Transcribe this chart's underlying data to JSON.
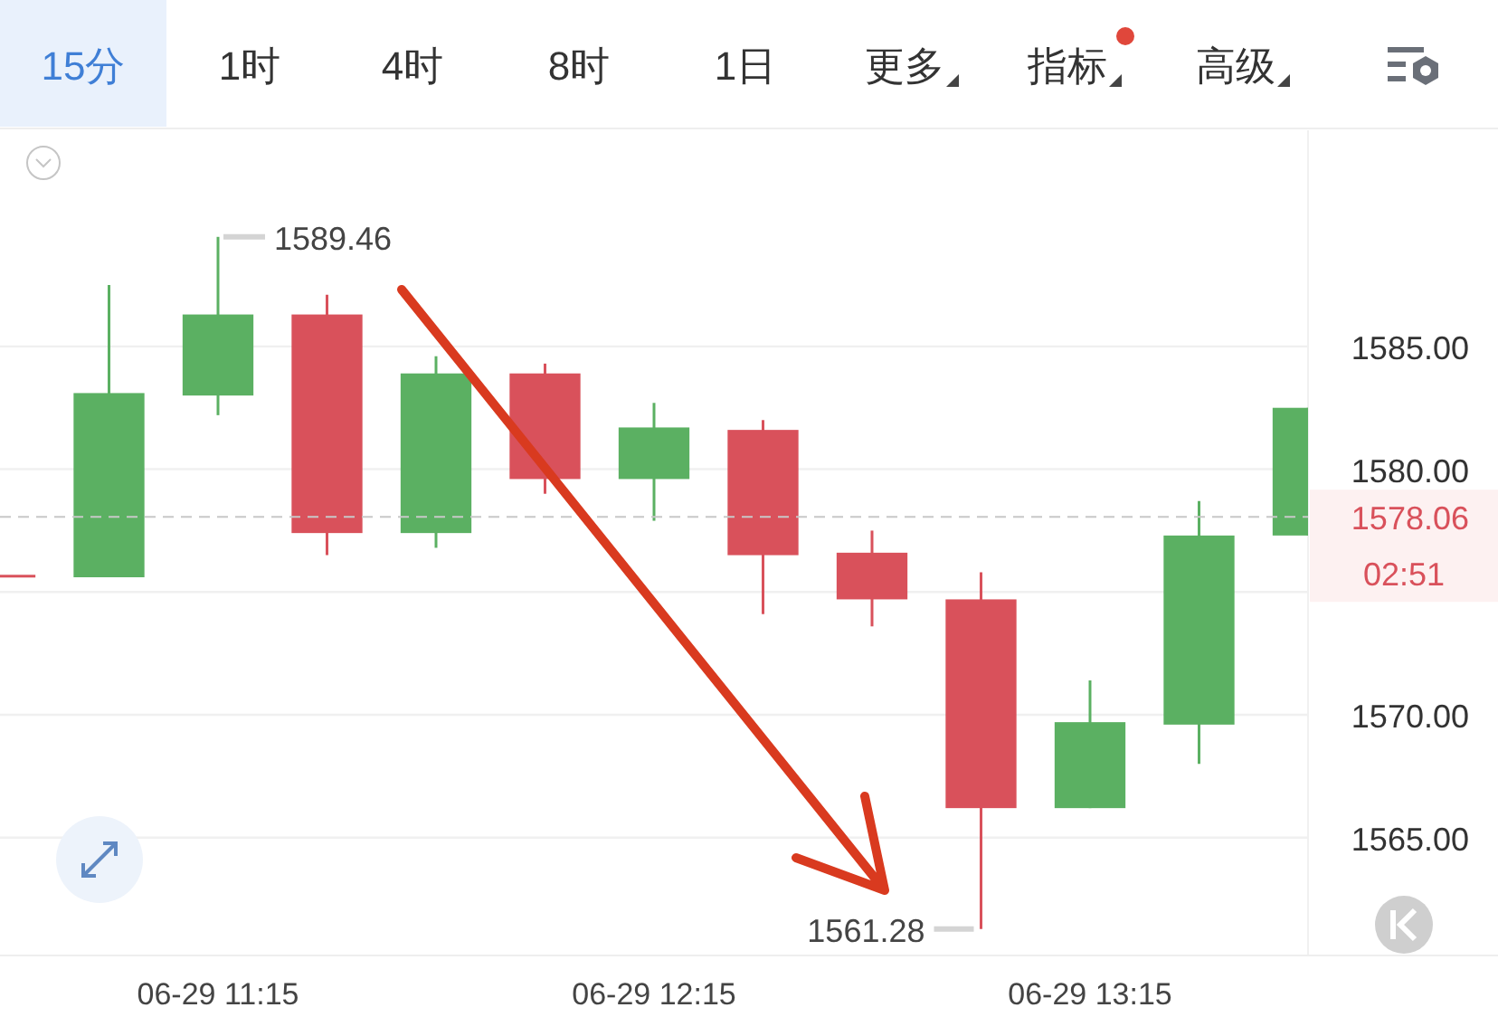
{
  "chart_data": {
    "type": "candlestick",
    "categories": [
      null,
      null,
      "06-29 11:15",
      null,
      null,
      null,
      "06-29 12:15",
      null,
      null,
      null,
      "06-29 13:15",
      null,
      null
    ],
    "ohlc": [
      [
        1575.7,
        1575.7,
        1575.7,
        1575.7
      ],
      [
        1575.6,
        1587.5,
        1575.6,
        1583.1
      ],
      [
        1583.0,
        1589.46,
        1582.2,
        1586.3
      ],
      [
        1586.3,
        1587.1,
        1576.5,
        1577.4
      ],
      [
        1577.4,
        1584.6,
        1576.8,
        1583.9
      ],
      [
        1583.9,
        1584.3,
        1579.0,
        1579.6
      ],
      [
        1579.6,
        1582.7,
        1577.9,
        1581.7
      ],
      [
        1581.6,
        1582.0,
        1574.1,
        1576.5
      ],
      [
        1576.6,
        1577.5,
        1573.6,
        1574.7
      ],
      [
        1574.7,
        1575.8,
        1561.28,
        1566.2
      ],
      [
        1566.2,
        1571.4,
        1566.2,
        1569.7
      ],
      [
        1569.6,
        1578.7,
        1568.0,
        1577.3
      ],
      [
        1577.3,
        1582.5,
        1577.3,
        1582.5
      ]
    ],
    "colors": [
      "#d9515b",
      "#5bb062",
      "#5bb062",
      "#d9515b",
      "#5bb062",
      "#d9515b",
      "#5bb062",
      "#d9515b",
      "#d9515b",
      "#d9515b",
      "#5bb062",
      "#5bb062",
      "#5bb062"
    ],
    "ylim": [
      1560.2,
      1593.8
    ],
    "yticks": [
      {
        "value": 1565,
        "label": "1565.00"
      },
      {
        "value": 1570,
        "label": "1570.00"
      },
      {
        "value": 1575,
        "label": null
      },
      {
        "value": 1580,
        "label": "1580.00"
      },
      {
        "value": 1585,
        "label": "1585.00"
      }
    ],
    "grid": "y",
    "ref_lines": [
      {
        "axis": "y",
        "value": 1578.06,
        "label": "1578.06",
        "line_style": "dashed"
      }
    ],
    "annotations": [
      {
        "text": "1589.46",
        "x": "06-29 11:15",
        "y": 1589.46
      },
      "1561.28",
      "15分",
      "1时",
      "4时",
      "8时",
      "1日",
      "更多",
      "指标",
      "高级",
      "02:51"
    ]
  }
}
